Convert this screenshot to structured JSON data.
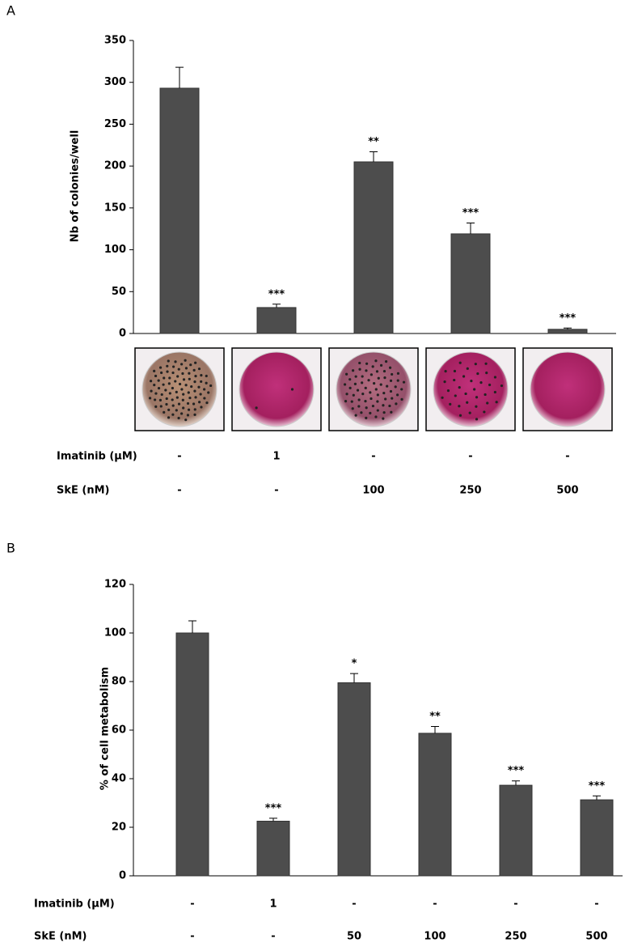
{
  "chart_data": [
    {
      "type": "bar",
      "panel_label": "A",
      "y_label": "Nb of colonies/well",
      "color": "#4d4d4d",
      "values": [
        293,
        31,
        205,
        119,
        5
      ],
      "errors": [
        25,
        4,
        12,
        13,
        1.5
      ],
      "significance": [
        null,
        "***",
        "**",
        "***",
        "***"
      ],
      "ylim": [
        0,
        350
      ],
      "yticks": [
        0,
        50,
        100,
        150,
        200,
        250,
        300,
        350
      ],
      "conditions": [
        {
          "name": "Imatinib (µM)",
          "values": [
            "-",
            "1",
            "-",
            "-",
            "-"
          ]
        },
        {
          "name": "SkE (nM)",
          "values": [
            "-",
            "-",
            "100",
            "250",
            "500"
          ]
        }
      ]
    },
    {
      "type": "bar",
      "panel_label": "B",
      "y_label": "% of cell metabolism",
      "color": "#4d4d4d",
      "values": [
        100,
        22.5,
        79.5,
        58.7,
        37.3,
        31.3
      ],
      "errors": [
        5,
        1.2,
        3.8,
        2.8,
        1.8,
        1.6
      ],
      "significance": [
        null,
        "***",
        "*",
        "**",
        "***",
        "***"
      ],
      "ylim": [
        0,
        120
      ],
      "yticks": [
        0,
        20,
        40,
        60,
        80,
        100,
        120
      ],
      "conditions": [
        {
          "name": "Imatinib (µM)",
          "values": [
            "-",
            "1",
            "-",
            "-",
            "-",
            "-"
          ]
        },
        {
          "name": "SkE (nM)",
          "values": [
            "-",
            "-",
            "50",
            "100",
            "250",
            "500"
          ]
        }
      ]
    }
  ]
}
